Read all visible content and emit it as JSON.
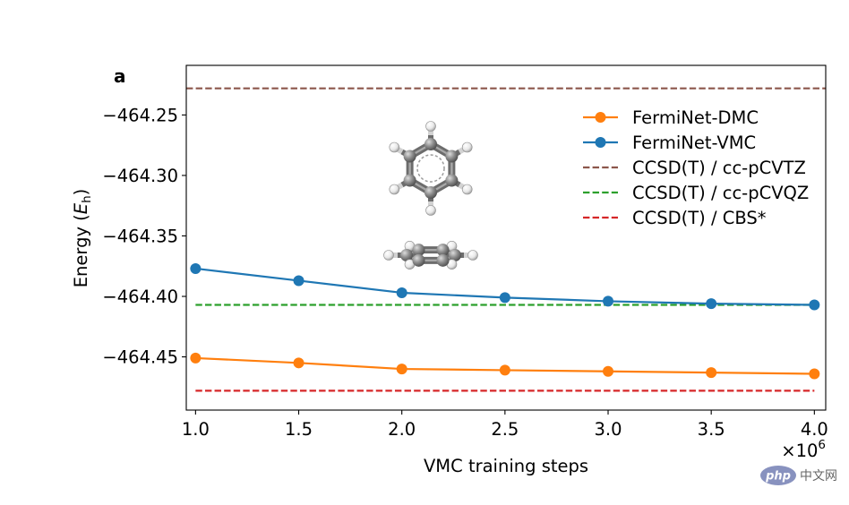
{
  "chart_data": {
    "type": "line",
    "panel_label": "a",
    "title": "",
    "xlabel": "VMC training steps",
    "x_offset_text": {
      "base": "×10",
      "exponent": "6"
    },
    "ylabel": {
      "prefix": "Energy (",
      "symbol": "E",
      "subscript": "h",
      "suffix": ")"
    },
    "xlim": [
      0.955,
      4.055
    ],
    "ylim": [
      -464.494,
      -464.209
    ],
    "grid": false,
    "x_ticks": [
      {
        "value": 1.0,
        "label": "1.0"
      },
      {
        "value": 1.5,
        "label": "1.5"
      },
      {
        "value": 2.0,
        "label": "2.0"
      },
      {
        "value": 2.5,
        "label": "2.5"
      },
      {
        "value": 3.0,
        "label": "3.0"
      },
      {
        "value": 3.5,
        "label": "3.5"
      },
      {
        "value": 4.0,
        "label": "4.0"
      }
    ],
    "y_ticks": [
      {
        "value": -464.45,
        "label": "−464.45"
      },
      {
        "value": -464.4,
        "label": "−464.40"
      },
      {
        "value": -464.35,
        "label": "−464.35"
      },
      {
        "value": -464.3,
        "label": "−464.30"
      },
      {
        "value": -464.25,
        "label": "−464.25"
      }
    ],
    "x": [
      1.0,
      1.5,
      2.0,
      2.5,
      3.0,
      3.5,
      4.0
    ],
    "series": [
      {
        "name": "FermiNet-DMC",
        "color": "#ff7f0e",
        "style": "solid",
        "marker": "circle",
        "values": [
          -464.451,
          -464.455,
          -464.46,
          -464.461,
          -464.462,
          -464.463,
          -464.464
        ]
      },
      {
        "name": "FermiNet-VMC",
        "color": "#1f77b4",
        "style": "solid",
        "marker": "circle",
        "values": [
          -464.377,
          -464.387,
          -464.397,
          -464.401,
          -464.404,
          -464.406,
          -464.407
        ]
      }
    ],
    "reference_lines": [
      {
        "name": "CCSD(T) / cc-pCVTZ",
        "color": "#8c564b",
        "style": "dashed",
        "y": -464.228,
        "x_range": [
          0.955,
          4.055
        ]
      },
      {
        "name": "CCSD(T) / cc-pCVQZ",
        "color": "#2ca02c",
        "style": "dashed",
        "y": -464.407,
        "x_range": [
          1.0,
          4.0
        ]
      },
      {
        "name": "CCSD(T) / CBS*",
        "color": "#d62728",
        "style": "dashed",
        "y": -464.478,
        "x_range": [
          1.0,
          4.0
        ]
      }
    ],
    "legend": {
      "location": "upper right",
      "frame": false
    }
  },
  "watermark": {
    "logo": "php",
    "text": "中文网",
    "logo_color": "#8892bf"
  }
}
